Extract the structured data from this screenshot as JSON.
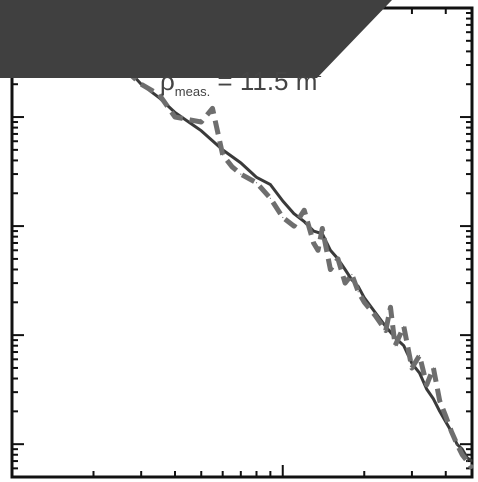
{
  "chart_data": {
    "type": "line",
    "title": "",
    "xlabel": "",
    "ylabel": "",
    "xscale": "log",
    "yscale": "log",
    "grid": false,
    "annotation": {
      "symbol": "ρ",
      "subscript": "meas.",
      "text": " = 11.5 m",
      "superscript": "-"
    },
    "series": [
      {
        "style": "solid",
        "color": "#3a3a3a",
        "x": [
          1.0,
          1.5,
          2.0,
          2.5,
          3.0,
          3.5,
          4.0,
          5.0,
          6.0,
          7.0,
          8.0,
          9.0,
          10.0,
          11.0,
          12.0,
          13.0,
          14.0,
          15.0,
          16.0,
          17.0,
          18.0,
          19.0,
          20.0,
          22.0,
          24.0,
          26.0,
          28.0,
          30.0,
          32.0,
          34.0,
          36.0,
          38.0,
          40.0,
          42.0,
          44.0,
          46.0,
          48.0,
          50.0
        ],
        "y": [
          0.62,
          0.62,
          0.45,
          0.33,
          0.2,
          0.15,
          0.11,
          0.075,
          0.05,
          0.038,
          0.028,
          0.024,
          0.017,
          0.013,
          0.011,
          0.009,
          0.0085,
          0.006,
          0.005,
          0.004,
          0.0032,
          0.0028,
          0.0022,
          0.0016,
          0.0012,
          0.00095,
          0.0008,
          0.00055,
          0.00045,
          0.00032,
          0.00026,
          0.0002,
          0.00016,
          0.00013,
          0.0001,
          9e-05,
          7.5e-05,
          7e-05
        ]
      },
      {
        "style": "dashed",
        "color": "#6e6e6e",
        "x": [
          1.0,
          1.5,
          2.0,
          2.5,
          3.0,
          3.5,
          4.0,
          5.0,
          5.5,
          6.0,
          6.5,
          7.0,
          8.0,
          9.0,
          10.0,
          11.0,
          12.0,
          13.0,
          13.5,
          14.0,
          15.0,
          16.0,
          17.0,
          18.0,
          19.0,
          20.0,
          22.0,
          24.0,
          25.0,
          26.0,
          28.0,
          30.0,
          32.0,
          34.0,
          36.0,
          38.0,
          40.0,
          42.0,
          44.0,
          46.0,
          48.0,
          50.0
        ],
        "y": [
          0.68,
          0.64,
          0.46,
          0.3,
          0.2,
          0.16,
          0.1,
          0.09,
          0.12,
          0.045,
          0.035,
          0.03,
          0.025,
          0.018,
          0.012,
          0.01,
          0.014,
          0.007,
          0.006,
          0.0095,
          0.004,
          0.005,
          0.003,
          0.0036,
          0.0025,
          0.002,
          0.0015,
          0.0011,
          0.0018,
          0.0008,
          0.0012,
          0.0005,
          0.00065,
          0.00035,
          0.0005,
          0.00025,
          0.00018,
          0.00013,
          0.0001,
          8e-05,
          7e-05,
          6e-05
        ]
      }
    ]
  }
}
